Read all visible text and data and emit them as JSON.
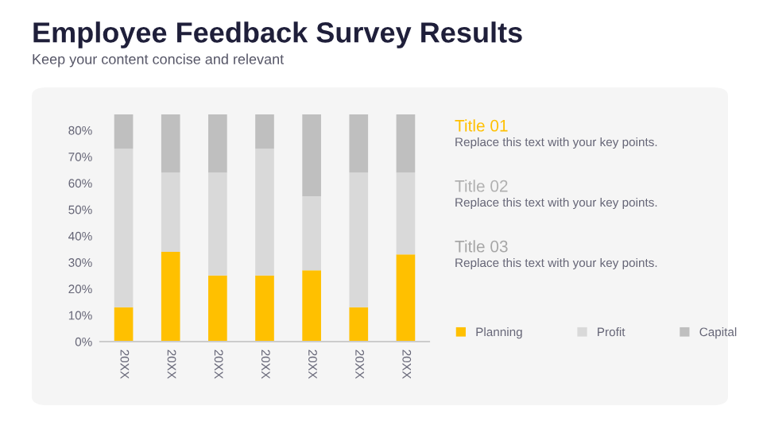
{
  "chart_data": {
    "type": "bar",
    "title": "Employee Feedback Survey Results",
    "subtitle": "Keep your content concise and relevant",
    "categories": [
      "20XX",
      "20XX",
      "20XX",
      "20XX",
      "20XX",
      "20XX",
      "20XX"
    ],
    "stacked": true,
    "series": [
      {
        "name": "Planning",
        "color": "#ffc000",
        "values": [
          13,
          34,
          25,
          25,
          27,
          13,
          33
        ]
      },
      {
        "name": "Profit",
        "color": "#d9d9d9",
        "values": [
          60,
          30,
          39,
          48,
          28,
          51,
          31
        ]
      },
      {
        "name": "Capital",
        "color": "#bfbfbf",
        "values": [
          13,
          22,
          22,
          13,
          31,
          22,
          22
        ]
      }
    ],
    "ylim": [
      0,
      86
    ],
    "yticks": [
      {
        "value": 0,
        "label": "0%"
      },
      {
        "value": 10,
        "label": "10%"
      },
      {
        "value": 20,
        "label": "20%"
      },
      {
        "value": 30,
        "label": "30%"
      },
      {
        "value": 40,
        "label": "40%"
      },
      {
        "value": 50,
        "label": "50%"
      },
      {
        "value": 60,
        "label": "60%"
      },
      {
        "value": 70,
        "label": "70%"
      },
      {
        "value": 80,
        "label": "80%"
      }
    ],
    "grid": false,
    "legend": "right",
    "annotations": [
      "Title 01",
      "Replace this text with your key points.",
      "Title 02",
      "Replace this text with your key points.",
      "Title 03",
      "Replace this text with your key points."
    ]
  }
}
